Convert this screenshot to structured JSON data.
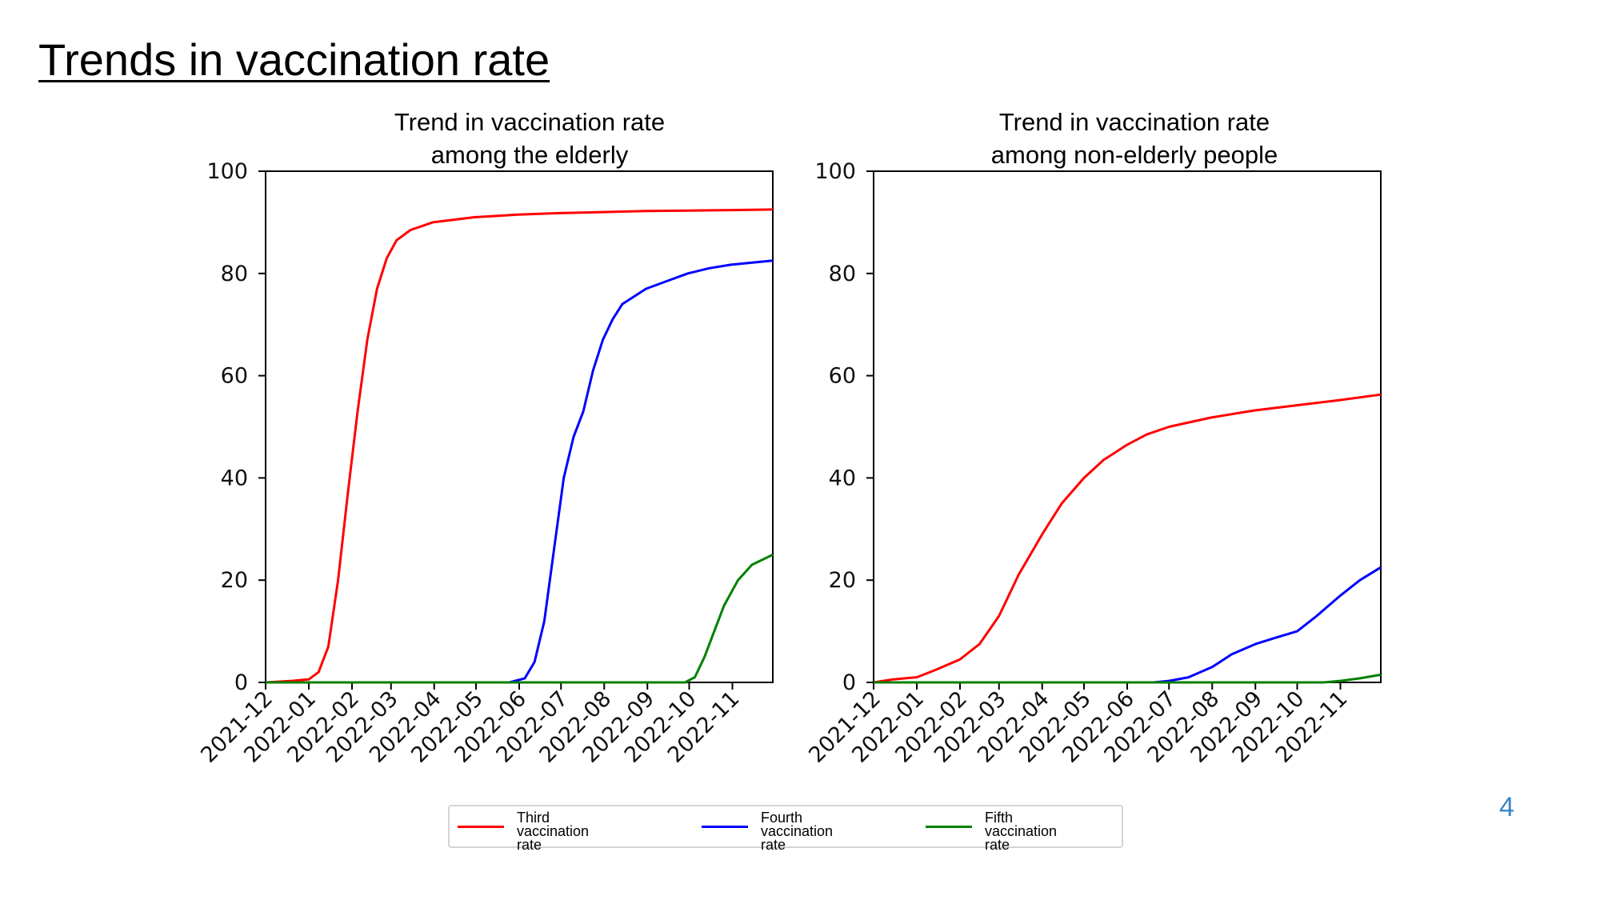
{
  "slide": {
    "title": "Trends in vaccination rate",
    "page_number": "4"
  },
  "colors": {
    "third": "#ff0000",
    "fourth": "#0000ff",
    "fifth": "#008000"
  },
  "legend": {
    "third": {
      "line1": "Third",
      "line2": "vaccination rate"
    },
    "fourth": {
      "line1": "Fourth",
      "line2": "vaccination rate"
    },
    "fifth": {
      "line1": "Fifth",
      "line2": "vaccination rate"
    }
  },
  "chart_data": [
    {
      "type": "line",
      "title_line1": "Trend in vaccination rate",
      "title_line2": "among the elderly",
      "xlabel": "",
      "ylabel": "",
      "x_ticks": [
        "2021-12",
        "2022-01",
        "2022-02",
        "2022-03",
        "2022-04",
        "2022-05",
        "2022-06",
        "2022-07",
        "2022-08",
        "2022-09",
        "2022-10",
        "2022-11"
      ],
      "y_ticks": [
        "0",
        "20",
        "40",
        "60",
        "80",
        "100"
      ],
      "xlim": [
        "2021-12-01",
        "2022-11-30"
      ],
      "ylim": [
        0,
        100
      ],
      "grid": false,
      "series": [
        {
          "key": "third",
          "points": [
            [
              "2021-12-01",
              0
            ],
            [
              "2021-12-20",
              0.3
            ],
            [
              "2022-01-01",
              0.6
            ],
            [
              "2022-01-08",
              2
            ],
            [
              "2022-01-15",
              7
            ],
            [
              "2022-01-22",
              20
            ],
            [
              "2022-01-29",
              37
            ],
            [
              "2022-02-05",
              53
            ],
            [
              "2022-02-12",
              67
            ],
            [
              "2022-02-19",
              77
            ],
            [
              "2022-02-26",
              83
            ],
            [
              "2022-03-05",
              86.5
            ],
            [
              "2022-03-15",
              88.5
            ],
            [
              "2022-03-31",
              90
            ],
            [
              "2022-04-30",
              91
            ],
            [
              "2022-05-31",
              91.5
            ],
            [
              "2022-06-30",
              91.8
            ],
            [
              "2022-07-31",
              92
            ],
            [
              "2022-08-31",
              92.2
            ],
            [
              "2022-09-30",
              92.3
            ],
            [
              "2022-10-31",
              92.4
            ],
            [
              "2022-11-30",
              92.5
            ]
          ]
        },
        {
          "key": "fourth",
          "points": [
            [
              "2021-12-01",
              0
            ],
            [
              "2022-05-25",
              0
            ],
            [
              "2022-06-05",
              0.8
            ],
            [
              "2022-06-12",
              4
            ],
            [
              "2022-06-19",
              12
            ],
            [
              "2022-06-26",
              26
            ],
            [
              "2022-07-03",
              40
            ],
            [
              "2022-07-10",
              48
            ],
            [
              "2022-07-17",
              53
            ],
            [
              "2022-07-24",
              61
            ],
            [
              "2022-07-31",
              67
            ],
            [
              "2022-08-07",
              71
            ],
            [
              "2022-08-14",
              74
            ],
            [
              "2022-08-31",
              77
            ],
            [
              "2022-09-15",
              78.5
            ],
            [
              "2022-09-30",
              80
            ],
            [
              "2022-10-15",
              81
            ],
            [
              "2022-10-31",
              81.7
            ],
            [
              "2022-11-30",
              82.5
            ]
          ]
        },
        {
          "key": "fifth",
          "points": [
            [
              "2021-12-01",
              0
            ],
            [
              "2022-09-28",
              0
            ],
            [
              "2022-10-05",
              1
            ],
            [
              "2022-10-12",
              5
            ],
            [
              "2022-10-19",
              10
            ],
            [
              "2022-10-26",
              15
            ],
            [
              "2022-11-05",
              20
            ],
            [
              "2022-11-15",
              23
            ],
            [
              "2022-11-30",
              25
            ]
          ]
        }
      ]
    },
    {
      "type": "line",
      "title_line1": "Trend in vaccination rate",
      "title_line2": "among non-elderly people",
      "xlabel": "",
      "ylabel": "",
      "x_ticks": [
        "2021-12",
        "2022-01",
        "2022-02",
        "2022-03",
        "2022-04",
        "2022-05",
        "2022-06",
        "2022-07",
        "2022-08",
        "2022-09",
        "2022-10",
        "2022-11"
      ],
      "y_ticks": [
        "0",
        "20",
        "40",
        "60",
        "80",
        "100"
      ],
      "xlim": [
        "2021-12-01",
        "2022-11-30"
      ],
      "ylim": [
        0,
        100
      ],
      "grid": false,
      "series": [
        {
          "key": "third",
          "points": [
            [
              "2021-12-01",
              0
            ],
            [
              "2021-12-15",
              0.6
            ],
            [
              "2022-01-01",
              1
            ],
            [
              "2022-01-15",
              2.5
            ],
            [
              "2022-02-01",
              4.5
            ],
            [
              "2022-02-15",
              7.5
            ],
            [
              "2022-03-01",
              13
            ],
            [
              "2022-03-15",
              21
            ],
            [
              "2022-04-01",
              29
            ],
            [
              "2022-04-15",
              35
            ],
            [
              "2022-05-01",
              40
            ],
            [
              "2022-05-15",
              43.5
            ],
            [
              "2022-06-01",
              46.5
            ],
            [
              "2022-06-15",
              48.5
            ],
            [
              "2022-07-01",
              50
            ],
            [
              "2022-07-31",
              51.8
            ],
            [
              "2022-08-31",
              53.2
            ],
            [
              "2022-09-30",
              54.2
            ],
            [
              "2022-10-31",
              55.2
            ],
            [
              "2022-11-30",
              56.3
            ]
          ]
        },
        {
          "key": "fourth",
          "points": [
            [
              "2021-12-01",
              0
            ],
            [
              "2022-06-20",
              0
            ],
            [
              "2022-07-01",
              0.3
            ],
            [
              "2022-07-15",
              1
            ],
            [
              "2022-08-01",
              3
            ],
            [
              "2022-08-15",
              5.5
            ],
            [
              "2022-09-01",
              7.5
            ],
            [
              "2022-09-15",
              8.7
            ],
            [
              "2022-10-01",
              10
            ],
            [
              "2022-10-15",
              13
            ],
            [
              "2022-11-01",
              17
            ],
            [
              "2022-11-15",
              20
            ],
            [
              "2022-11-30",
              22.5
            ]
          ]
        },
        {
          "key": "fifth",
          "points": [
            [
              "2021-12-01",
              0
            ],
            [
              "2022-10-20",
              0
            ],
            [
              "2022-11-01",
              0.3
            ],
            [
              "2022-11-15",
              0.8
            ],
            [
              "2022-11-30",
              1.5
            ]
          ]
        }
      ]
    }
  ]
}
